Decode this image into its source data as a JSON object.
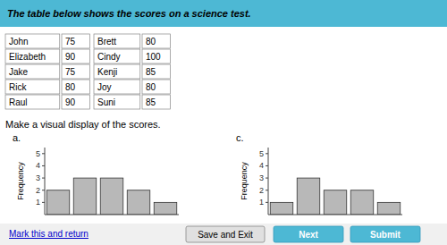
{
  "header": "The table below shows the scores on a science test.",
  "table": {
    "rows": [
      [
        "John",
        75,
        "Brett",
        80
      ],
      [
        "Elizabeth",
        90,
        "Cindy",
        100
      ],
      [
        "Jake",
        75,
        "Kenji",
        85
      ],
      [
        "Rick",
        80,
        "Joy",
        80
      ],
      [
        "Raul",
        90,
        "Suni",
        85
      ]
    ]
  },
  "prompt": "Make a visual display of the scores.",
  "link": "Mark this and return",
  "buttons": [
    "Save and Exit",
    "Next",
    "Submit"
  ],
  "chart_data": [
    {
      "type": "bar",
      "title": "a.",
      "categories": [
        null,
        null,
        null,
        null,
        null
      ],
      "values": [
        2,
        3,
        3,
        2,
        1
      ],
      "color": "#b8b8b8",
      "ylabel": "Frequency",
      "ylim": [
        0,
        5.5
      ],
      "yticks": [
        1,
        2,
        3,
        4,
        5
      ],
      "grid": false,
      "tick_labels": "y"
    },
    {
      "type": "bar",
      "title": "c.",
      "categories": [
        null,
        null,
        null,
        null,
        null
      ],
      "values": [
        1,
        3,
        2,
        2,
        1
      ],
      "color": "#b8b8b8",
      "ylabel": "Frequency",
      "ylim": [
        0,
        5.5
      ],
      "yticks": [
        1,
        2,
        3,
        4,
        5
      ],
      "grid": false,
      "tick_labels": "y"
    }
  ]
}
